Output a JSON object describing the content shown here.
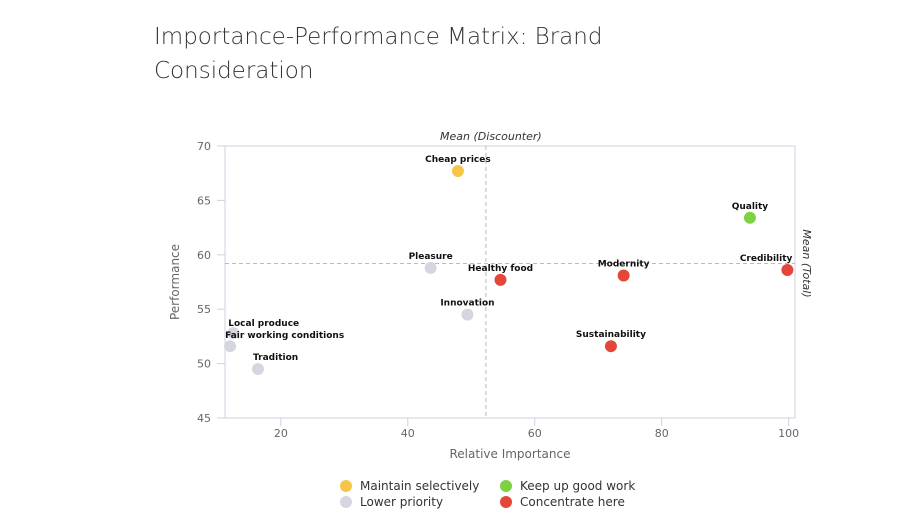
{
  "chart_data": {
    "type": "scatter",
    "title": "Importance-Performance Matrix: Brand Consideration",
    "xlabel": "Relative Importance",
    "ylabel": "Performance",
    "xlim": [
      11.2,
      101
    ],
    "ylim": [
      45,
      70
    ],
    "xticks": [
      20,
      40,
      60,
      80,
      100
    ],
    "yticks": [
      45,
      50,
      55,
      60,
      65,
      70
    ],
    "grid": false,
    "reference_lines": {
      "vertical": {
        "label": "Mean (Discounter)",
        "x": 52.3
      },
      "horizontal": {
        "label": "Mean (Total)",
        "y": 59.2
      }
    },
    "categories": {
      "maintain": {
        "name": "Maintain selectively",
        "color": "#f7c548"
      },
      "keep": {
        "name": "Keep up good work",
        "color": "#7ed143"
      },
      "lower": {
        "name": "Lower priority",
        "color": "#d5d6df"
      },
      "concentrate": {
        "name": "Concentrate here",
        "color": "#e4473a"
      }
    },
    "legend_order": [
      "maintain",
      "keep",
      "lower",
      "concentrate"
    ],
    "legend_placement": "bottom",
    "points": [
      {
        "label": "Cheap prices",
        "x": 47.9,
        "y": 67.7,
        "cat": "maintain"
      },
      {
        "label": "Quality",
        "x": 93.9,
        "y": 63.4,
        "cat": "keep"
      },
      {
        "label": "Credibility",
        "x": 99.8,
        "y": 58.6,
        "cat": "concentrate"
      },
      {
        "label": "Pleasure",
        "x": 43.6,
        "y": 58.8,
        "cat": "lower"
      },
      {
        "label": "Healthy food",
        "x": 54.6,
        "y": 57.7,
        "cat": "concentrate"
      },
      {
        "label": "Modernity",
        "x": 74.0,
        "y": 58.1,
        "cat": "concentrate"
      },
      {
        "label": "Innovation",
        "x": 49.4,
        "y": 54.5,
        "cat": "lower"
      },
      {
        "label": "Sustainability",
        "x": 72.0,
        "y": 51.6,
        "cat": "concentrate"
      },
      {
        "label": "Local produce",
        "x": 12.5,
        "y": 52.8,
        "cat": "lower"
      },
      {
        "label": "Fair working conditions",
        "x": 12.0,
        "y": 51.6,
        "cat": "lower"
      },
      {
        "label": "Tradition",
        "x": 16.4,
        "y": 49.5,
        "cat": "lower"
      }
    ]
  }
}
